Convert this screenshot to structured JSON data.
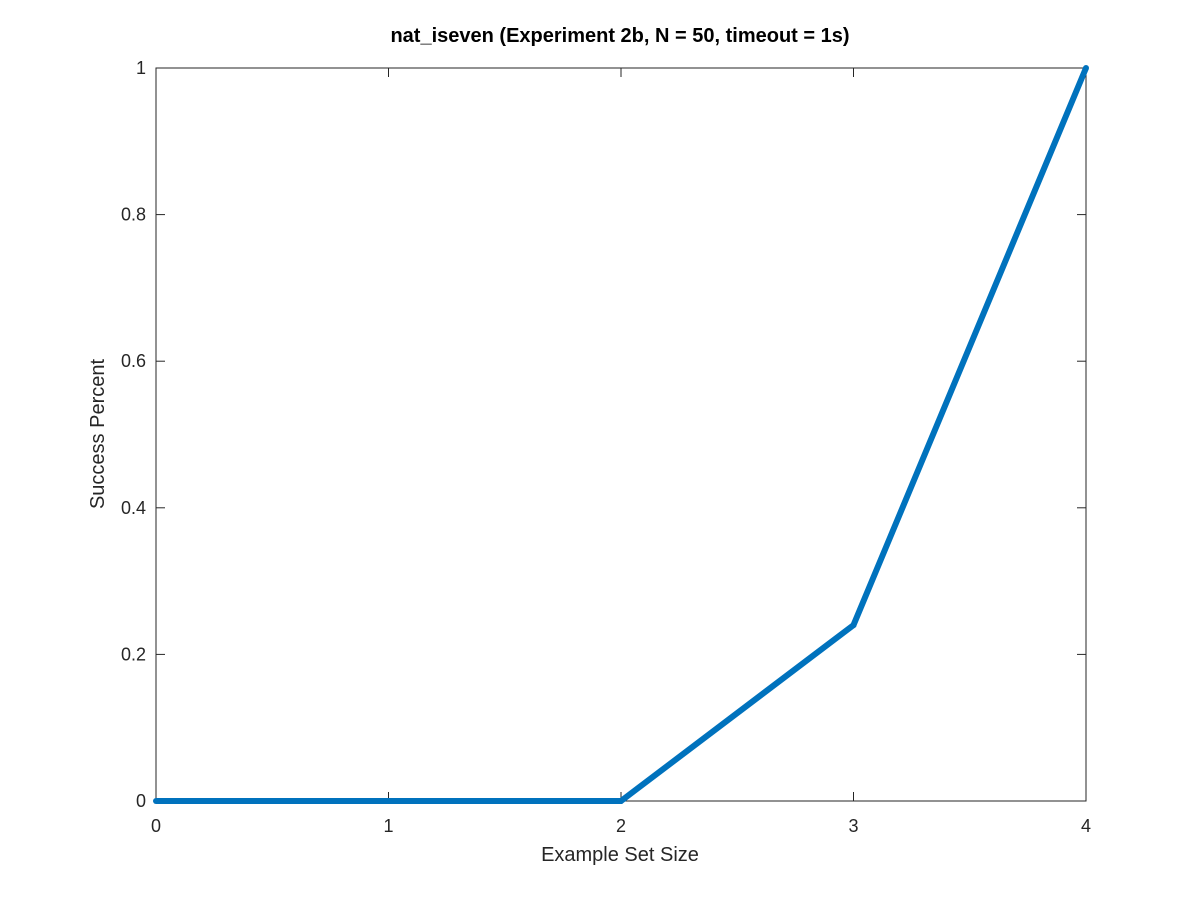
{
  "chart_data": {
    "type": "line",
    "title": "nat_iseven (Experiment 2b, N = 50, timeout = 1s)",
    "xlabel": "Example Set Size",
    "ylabel": "Success Percent",
    "x": [
      0,
      1,
      2,
      3,
      4
    ],
    "series": [
      {
        "values": [
          0,
          0,
          0,
          0.24,
          1
        ],
        "color": "#0072BD"
      }
    ],
    "xlim": [
      0,
      4
    ],
    "ylim": [
      0,
      1
    ],
    "xticks": [
      0,
      1,
      2,
      3,
      4
    ],
    "xtick_labels": [
      "0",
      "1",
      "2",
      "3",
      "4"
    ],
    "yticks": [
      0,
      0.2,
      0.4,
      0.6,
      0.8,
      1
    ],
    "ytick_labels": [
      "0",
      "0.2",
      "0.4",
      "0.6",
      "0.8",
      "1"
    ],
    "grid": false,
    "box": true,
    "axis_color": "#262626"
  }
}
